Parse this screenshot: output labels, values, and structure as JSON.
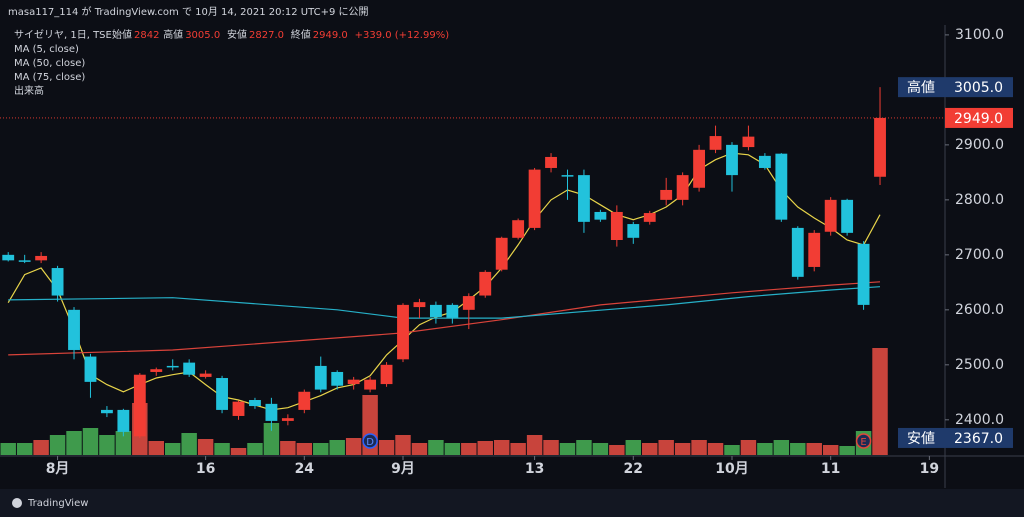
{
  "header": {
    "publisher": "masa117_114 が TradingView.com で 10月 14, 2021 20:12 UTC+9 に公開"
  },
  "chart_data": {
    "type": "candlestick",
    "symbol": "サイゼリヤ, 1日, TSE",
    "ohlc_legend": [
      {
        "label": "始値",
        "value": "2842"
      },
      {
        "label": "高値",
        "value": "3005.0"
      },
      {
        "label": "安値",
        "value": "2827.0"
      },
      {
        "label": "終値",
        "value": "2949.0"
      }
    ],
    "change": "+339.0 (+12.99%)",
    "indicator_label": "出来高",
    "open": [
      2700,
      2690,
      2690,
      2676,
      2600,
      2515,
      2418,
      2418,
      2370,
      2487,
      2498,
      2504,
      2478,
      2476,
      2407,
      2436,
      2429,
      2398,
      2418,
      2498,
      2487,
      2465,
      2455,
      2465,
      2510,
      2605,
      2609,
      2609,
      2600,
      2626,
      2673,
      2731,
      2749,
      2858,
      2845,
      2845,
      2778,
      2727,
      2756,
      2760,
      2800,
      2800,
      2822,
      2891,
      2900,
      2896,
      2880,
      2884,
      2749,
      2678,
      2742,
      2800,
      2720,
      2842
    ],
    "high": [
      2705,
      2700,
      2705,
      2680,
      2605,
      2520,
      2425,
      2420,
      2485,
      2495,
      2510,
      2510,
      2490,
      2480,
      2435,
      2440,
      2440,
      2410,
      2455,
      2515,
      2490,
      2478,
      2478,
      2505,
      2612,
      2620,
      2615,
      2612,
      2630,
      2672,
      2733,
      2766,
      2858,
      2885,
      2855,
      2855,
      2782,
      2790,
      2760,
      2780,
      2840,
      2850,
      2900,
      2935,
      2905,
      2935,
      2885,
      2885,
      2752,
      2745,
      2805,
      2802,
      2725,
      3005
    ],
    "low": [
      2688,
      2685,
      2685,
      2615,
      2510,
      2440,
      2405,
      2370,
      2367,
      2480,
      2490,
      2478,
      2475,
      2412,
      2400,
      2420,
      2380,
      2390,
      2412,
      2450,
      2455,
      2455,
      2450,
      2460,
      2505,
      2585,
      2575,
      2575,
      2565,
      2622,
      2670,
      2728,
      2745,
      2850,
      2800,
      2740,
      2760,
      2715,
      2720,
      2755,
      2790,
      2790,
      2815,
      2885,
      2815,
      2890,
      2855,
      2760,
      2655,
      2670,
      2735,
      2735,
      2600,
      2827
    ],
    "close": [
      2690,
      2690,
      2698,
      2626,
      2527,
      2469,
      2412,
      2378,
      2482,
      2492,
      2498,
      2482,
      2484,
      2418,
      2433,
      2425,
      2398,
      2403,
      2451,
      2455,
      2462,
      2473,
      2473,
      2500,
      2609,
      2614,
      2587,
      2586,
      2625,
      2669,
      2731,
      2763,
      2855,
      2878,
      2845,
      2760,
      2764,
      2778,
      2731,
      2776,
      2818,
      2845,
      2891,
      2916,
      2845,
      2915,
      2858,
      2764,
      2660,
      2740,
      2800,
      2740,
      2609,
      2949
    ],
    "volume": [
      12,
      12,
      15,
      20,
      24,
      27,
      20,
      24,
      52,
      14,
      12,
      22,
      16,
      12,
      7,
      12,
      32,
      14,
      12,
      12,
      15,
      17,
      60,
      15,
      20,
      12,
      15,
      12,
      12,
      14,
      15,
      12,
      20,
      15,
      12,
      15,
      12,
      10,
      15,
      12,
      15,
      12,
      15,
      12,
      10,
      15,
      12,
      15,
      12,
      12,
      10,
      9,
      24,
      107
    ],
    "up_color": "#f23d34",
    "down_color": "#22c2dc",
    "volume_up_color": "#c8443c",
    "volume_down_color": "#3f9a4c",
    "series": [
      {
        "name": "MA (5, close)",
        "color": "#e8d44a",
        "values": [
          2613,
          2664,
          2676,
          2636,
          2564,
          2482,
          2464,
          2451,
          2464,
          2476,
          2482,
          2487,
          2464,
          2442,
          2436,
          2427,
          2418,
          2422,
          2433,
          2444,
          2458,
          2464,
          2480,
          2518,
          2545,
          2573,
          2587,
          2596,
          2618,
          2642,
          2676,
          2718,
          2764,
          2800,
          2818,
          2809,
          2791,
          2773,
          2764,
          2773,
          2787,
          2809,
          2855,
          2873,
          2885,
          2882,
          2864,
          2818,
          2787,
          2767,
          2749,
          2727,
          2718,
          2773
        ]
      },
      {
        "name": "MA (50, close)",
        "color": "#d9433a",
        "x": [
          0,
          10,
          20,
          24,
          30,
          36,
          44,
          50,
          53
        ],
        "values": [
          2518,
          2527,
          2549,
          2558,
          2582,
          2609,
          2631,
          2645,
          2651
        ]
      },
      {
        "name": "MA (75, close)",
        "color": "#26b0c8",
        "x": [
          0,
          10,
          20,
          24,
          30,
          40,
          45,
          50,
          53
        ],
        "values": [
          2618,
          2622,
          2600,
          2585,
          2585,
          2609,
          2624,
          2636,
          2642
        ]
      }
    ],
    "ylim": [
      2336,
      3118
    ],
    "yticks": [
      {
        "value": 2400,
        "label": "2400.0"
      },
      {
        "value": 2500,
        "label": "2500.0"
      },
      {
        "value": 2600,
        "label": "2600.0"
      },
      {
        "value": 2700,
        "label": "2700.0"
      },
      {
        "value": 2800,
        "label": "2800.0"
      },
      {
        "value": 2900,
        "label": "2900.0"
      },
      {
        "value": 3000,
        "label": "3000.0"
      },
      {
        "value": 3100,
        "label": "3100.0"
      }
    ],
    "xlim": [
      -0.5,
      56.95
    ],
    "xticks": [
      {
        "value": 3,
        "label": "8月"
      },
      {
        "value": 12,
        "label": "16"
      },
      {
        "value": 18,
        "label": "24"
      },
      {
        "value": 24,
        "label": "9月"
      },
      {
        "value": 32,
        "label": "13"
      },
      {
        "value": 38,
        "label": "22"
      },
      {
        "value": 44,
        "label": "10月"
      },
      {
        "value": 50,
        "label": "11"
      },
      {
        "value": 56,
        "label": "19"
      }
    ],
    "price_labels": [
      {
        "label": "高値",
        "value": 3005,
        "value_label": "3005.0"
      },
      {
        "value": 2949,
        "value_label": "2949.0"
      },
      {
        "label": "安値",
        "value": 2367,
        "value_label": "2367.0"
      }
    ],
    "markers": [
      {
        "label": "D",
        "x": 22
      },
      {
        "label": "E",
        "x": 52
      }
    ]
  },
  "footer": {
    "brand": "TradingView"
  }
}
